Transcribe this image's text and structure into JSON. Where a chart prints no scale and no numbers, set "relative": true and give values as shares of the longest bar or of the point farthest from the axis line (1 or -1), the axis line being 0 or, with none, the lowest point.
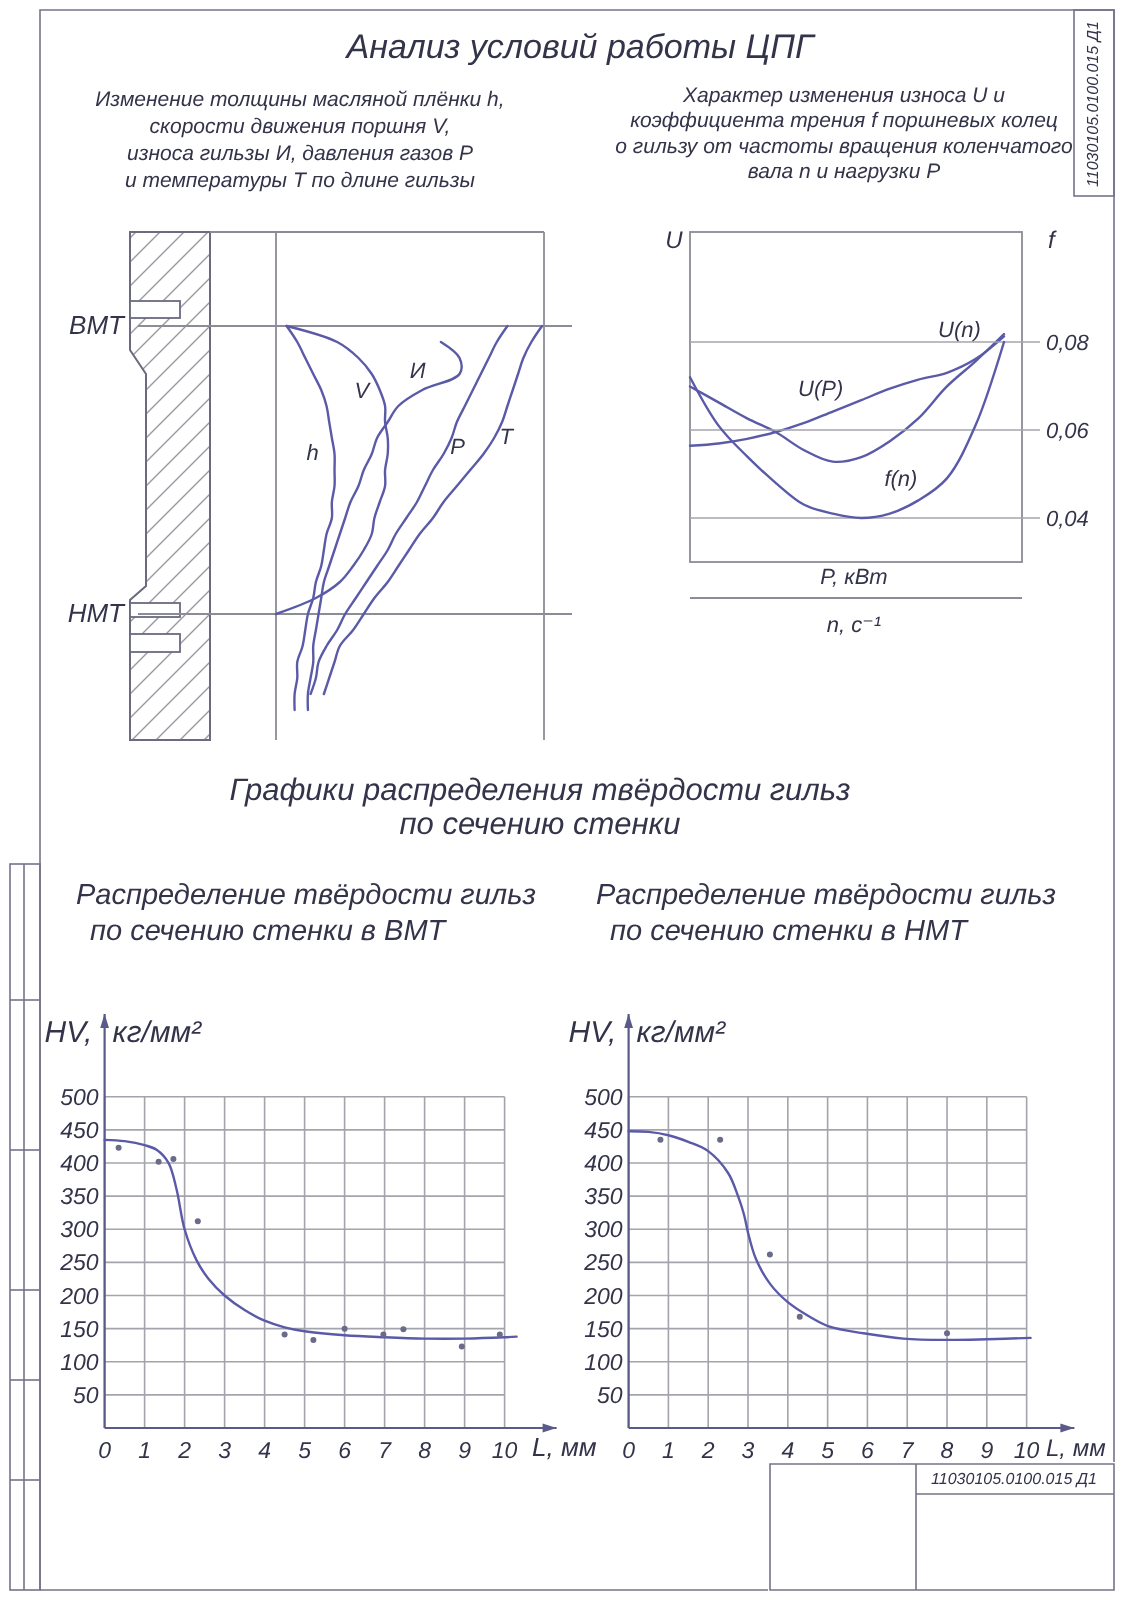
{
  "chart_data": [
    {
      "type": "line",
      "relative": true,
      "orientation": "horizontal",
      "title": "Анализ условий работы ЦПГ",
      "subtitle": "Изменение толщины масляной плёнки h,\nскорости движения поршня V,\nизноса гильзы И, давления газов P\nи температуры T по длине гильзы",
      "categories": [
        "ВМТ",
        null,
        null,
        null,
        null,
        null,
        null,
        null,
        null,
        null,
        null,
        null,
        null,
        null,
        null,
        null,
        null,
        null,
        "НМТ",
        null,
        null,
        null,
        null,
        null,
        null
      ],
      "series": [
        {
          "name": "h",
          "color": "#5a5aa8",
          "values": [
            0.04,
            0.08,
            0.11,
            0.14,
            0.17,
            0.19,
            0.2,
            0.21,
            0.22,
            0.22,
            0.22,
            0.21,
            0.21,
            0.19,
            0.18,
            0.17,
            0.15,
            0.14,
            0.12,
            0.11,
            0.1,
            0.08,
            0.08,
            0.07,
            0.07
          ]
        },
        {
          "name": "V",
          "color": "#5a5aa8",
          "values": [
            0.04,
            0.23,
            0.31,
            0.36,
            0.39,
            0.41,
            0.41,
            0.42,
            0.42,
            0.41,
            0.41,
            0.39,
            0.37,
            0.36,
            0.33,
            0.29,
            0.24,
            0.15,
            0.0,
            null,
            null,
            null,
            null,
            null,
            null
          ]
        },
        {
          "name": "И",
          "color": "#5a5aa8",
          "values": [
            null,
            0.62,
            0.69,
            0.69,
            0.55,
            0.46,
            0.42,
            0.38,
            0.36,
            0.33,
            0.31,
            0.28,
            0.26,
            0.24,
            0.22,
            0.2,
            0.18,
            0.17,
            0.16,
            0.15,
            0.14,
            0.14,
            0.13,
            0.12,
            0.12
          ]
        },
        {
          "name": "P",
          "color": "#5a5aa8",
          "values": [
            0.87,
            0.83,
            0.8,
            0.77,
            0.74,
            0.71,
            0.68,
            0.66,
            0.63,
            0.59,
            0.56,
            0.53,
            0.49,
            0.45,
            0.42,
            0.38,
            0.34,
            0.3,
            0.26,
            0.23,
            0.19,
            0.16,
            0.15,
            0.13,
            null
          ]
        },
        {
          "name": "T",
          "color": "#5a5aa8",
          "values": [
            1.0,
            0.96,
            0.93,
            0.91,
            0.89,
            0.87,
            0.85,
            0.82,
            0.78,
            0.73,
            0.68,
            0.63,
            0.59,
            0.54,
            0.5,
            0.46,
            0.42,
            0.37,
            0.33,
            0.29,
            0.24,
            0.22,
            0.2,
            0.18,
            null
          ]
        }
      ]
    },
    {
      "type": "line",
      "relative": true,
      "title": "Характер изменения износа U и\nкоэффициента трения f поршневых колец\nо гильзу от частоты вращения коленчатого\nвала n и нагрузки P",
      "ylabel": "U",
      "xlabel": "P, кВт\nn, с⁻¹",
      "annotations": [
        "11030105.0100.015 Д1"
      ],
      "categories": [
        null,
        null,
        null,
        null,
        null,
        null,
        null,
        null,
        null,
        null,
        null,
        null
      ],
      "series": [
        {
          "name": "U(n)",
          "color": "#5a5aa8",
          "values": [
            0.77,
            0.7,
            0.63,
            0.57,
            0.49,
            0.44,
            0.46,
            0.53,
            0.63,
            0.77,
            0.88,
            1.0
          ]
        },
        {
          "name": "U(P)",
          "color": "#5a5aa8",
          "values": [
            0.51,
            0.52,
            0.54,
            0.57,
            0.61,
            0.66,
            0.71,
            0.76,
            0.8,
            0.83,
            0.89,
            0.99
          ]
        }
      ]
    },
    {
      "type": "line",
      "ylabel": "f",
      "categories": [
        null,
        null,
        null,
        null,
        null,
        null,
        null,
        null,
        null,
        null,
        null,
        null
      ],
      "ylim": [
        0.03,
        0.105
      ],
      "yticks": [
        {
          "value": 0.04,
          "label": "0,04"
        },
        {
          "value": 0.06,
          "label": "0,06"
        },
        {
          "value": 0.08,
          "label": "0,08"
        }
      ],
      "grid": "y",
      "series": [
        {
          "name": "f(n)",
          "color": "#5a5aa8",
          "values": [
            0.072,
            0.061,
            0.054,
            0.048,
            0.043,
            0.041,
            0.04,
            0.041,
            0.044,
            0.049,
            0.061,
            0.08
          ]
        }
      ]
    },
    {
      "type": "line",
      "title": "Графики распределения твёрдости гильз\nпо сечению стенки",
      "subtitle": "Распределение твёрдости гильз\nпо сечению стенки в ВМТ",
      "xlabel": "L, мм",
      "ylabel": "HV, кг/мм²",
      "xlim": [
        0,
        11.3
      ],
      "ylim": [
        0,
        625
      ],
      "xticks": [
        0,
        1,
        2,
        3,
        4,
        5,
        6,
        7,
        8,
        9,
        10
      ],
      "yticks": [
        50,
        100,
        150,
        200,
        250,
        300,
        350,
        400,
        450,
        500
      ],
      "grid": true,
      "series": [
        {
          "color": "#5a5aa8",
          "x": [
            0,
            0.5,
            1,
            1.3,
            1.6,
            1.8,
            2,
            2.3,
            2.6,
            3,
            3.5,
            4,
            4.5,
            5,
            6,
            7,
            8,
            9,
            10,
            10.3
          ],
          "values": [
            435,
            433,
            427,
            420,
            400,
            360,
            300,
            253,
            225,
            200,
            178,
            162,
            152,
            146,
            140,
            137,
            135,
            135,
            137,
            138
          ]
        },
        {
          "type": "scatter",
          "color": "#6a6a8a",
          "x": [
            0.35,
            1.35,
            1.72,
            2.33,
            4.5,
            5.22,
            6.0,
            6.97,
            7.47,
            8.93,
            9.88
          ],
          "values": [
            423,
            402,
            406,
            312,
            141,
            133,
            150,
            141,
            149,
            123,
            141
          ]
        }
      ]
    },
    {
      "type": "line",
      "title": "Распределение твёрдости гильз\nпо сечению стенки в НМТ",
      "xlabel": "L, мм",
      "ylabel": "HV, кг/мм²",
      "annotations": [
        "11030105.0100.015 Д1"
      ],
      "xlim": [
        0,
        11.2
      ],
      "ylim": [
        0,
        625
      ],
      "xticks": [
        0,
        1,
        2,
        3,
        4,
        5,
        6,
        7,
        8,
        9,
        10
      ],
      "yticks": [
        50,
        100,
        150,
        200,
        250,
        300,
        350,
        400,
        450,
        500
      ],
      "grid": true,
      "series": [
        {
          "color": "#5a5aa8",
          "x": [
            0,
            0.5,
            1,
            1.5,
            2,
            2.5,
            2.75,
            2.9,
            3,
            3.2,
            3.55,
            4,
            4.55,
            5.05,
            5.9,
            6.9,
            8,
            9,
            10.1
          ],
          "values": [
            448,
            447,
            442,
            432,
            418,
            385,
            350,
            322,
            295,
            255,
            218,
            190,
            168,
            153,
            143,
            135,
            133,
            134,
            136
          ]
        },
        {
          "type": "scatter",
          "color": "#6a6a8a",
          "x": [
            0.8,
            2.3,
            3.55,
            4.3,
            8.0
          ],
          "values": [
            435,
            435,
            262,
            168,
            143
          ]
        }
      ]
    }
  ]
}
